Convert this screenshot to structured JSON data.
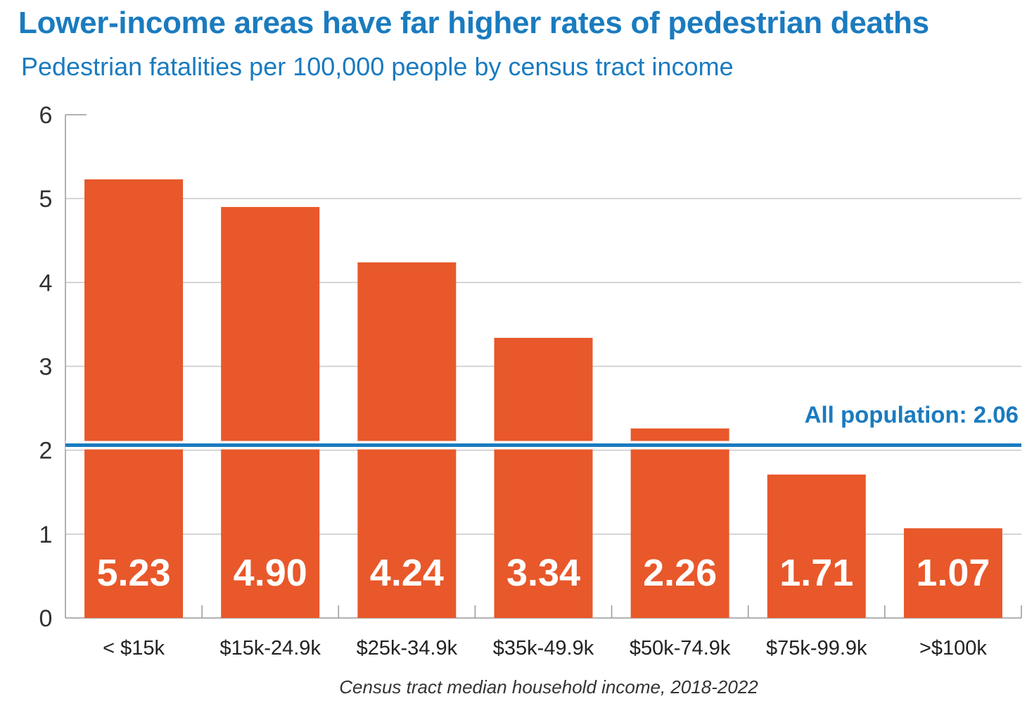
{
  "chart_data": {
    "type": "bar",
    "title": "Lower-income areas have far higher rates of pedestrian deaths",
    "subtitle": "Pedestrian fatalities per 100,000 people by census tract income",
    "xlabel": "Census tract median household income, 2018-2022",
    "ylabel": "",
    "ylim": [
      0,
      6
    ],
    "yticks": [
      0,
      1,
      2,
      3,
      4,
      5,
      6
    ],
    "categories": [
      "< $15k",
      "$15k-24.9k",
      "$25k-34.9k",
      "$35k-49.9k",
      "$50k-74.9k",
      "$75k-99.9k",
      ">$100k"
    ],
    "values": [
      5.23,
      4.9,
      4.24,
      3.34,
      2.26,
      1.71,
      1.07
    ],
    "value_labels": [
      "5.23",
      "4.90",
      "4.24",
      "3.34",
      "2.26",
      "1.71",
      "1.07"
    ],
    "reference_line": {
      "value": 2.06,
      "label": "All population: 2.06"
    },
    "grid": true,
    "colors": {
      "bar": "#e8582a",
      "reference_line": "#1a7bbf",
      "title": "#1a7bbf",
      "grid": "#c8c8c8",
      "axis": "#999999"
    }
  }
}
